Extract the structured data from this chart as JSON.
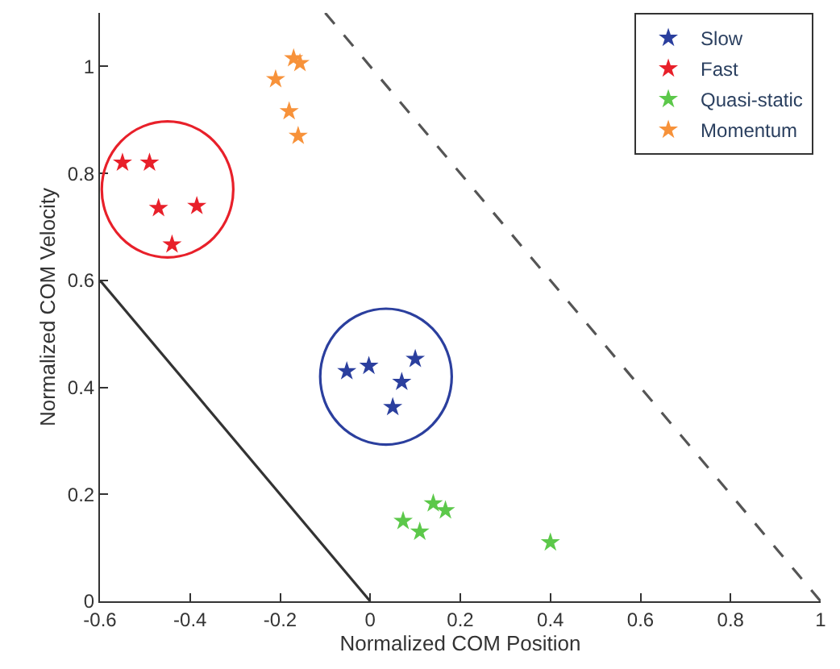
{
  "chart_data": {
    "type": "scatter",
    "xlabel": "Normalized COM Position",
    "ylabel": "Normalized COM Velocity",
    "xlim": [
      -0.6,
      1
    ],
    "ylim": [
      0,
      1.1
    ],
    "xticks": [
      -0.6,
      -0.4,
      -0.2,
      0,
      0.2,
      0.4,
      0.6,
      0.8,
      1
    ],
    "yticks": [
      0,
      0.2,
      0.4,
      0.6,
      0.8,
      1
    ],
    "legend": "top right",
    "marker": "star",
    "series": [
      {
        "name": "Slow",
        "color": "#2b3f9e",
        "x": [
          -0.052,
          -0.003,
          0.07,
          0.1,
          0.05
        ],
        "values": [
          0.43,
          0.44,
          0.41,
          0.453,
          0.363
        ]
      },
      {
        "name": "Fast",
        "color": "#e8202a",
        "x": [
          -0.55,
          -0.49,
          -0.47,
          -0.385,
          -0.44
        ],
        "values": [
          0.82,
          0.82,
          0.735,
          0.739,
          0.667
        ]
      },
      {
        "name": "Quasi-static",
        "color": "#5cc84a",
        "x": [
          0.073,
          0.11,
          0.14,
          0.167,
          0.4
        ],
        "values": [
          0.15,
          0.13,
          0.183,
          0.17,
          0.11
        ]
      },
      {
        "name": "Momentum",
        "color": "#f7923a",
        "x": [
          -0.21,
          -0.17,
          -0.156,
          -0.18,
          -0.16
        ],
        "values": [
          0.976,
          1.015,
          1.006,
          0.916,
          0.87
        ]
      },
      {
        "type": "line",
        "color": "#333333",
        "marker": "none",
        "line_style": "solid",
        "x": [
          -0.6,
          0
        ],
        "values": [
          0.6,
          0
        ]
      },
      {
        "type": "line",
        "color": "#555555",
        "marker": "none",
        "line_style": "dashed",
        "x": [
          -0.1,
          1
        ],
        "values": [
          1.1,
          0
        ]
      }
    ]
  }
}
